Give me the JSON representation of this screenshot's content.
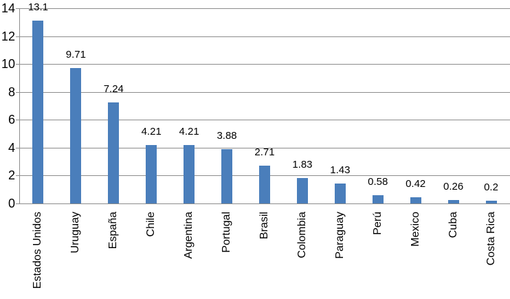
{
  "chart_data": {
    "type": "bar",
    "categories": [
      "Estados Unidos",
      "Uruguay",
      "España",
      "Chile",
      "Argentina",
      "Portugal",
      "Brasil",
      "Colombia",
      "Paraguay",
      "Perú",
      "Mexico",
      "Cuba",
      "Costa Rica"
    ],
    "values": [
      13.1,
      9.71,
      7.24,
      4.21,
      4.21,
      3.88,
      2.71,
      1.83,
      1.43,
      0.58,
      0.42,
      0.26,
      0.2
    ],
    "value_labels": [
      "13.1",
      "9.71",
      "7.24",
      "4.21",
      "4.21",
      "3.88",
      "2.71",
      "1.83",
      "1.43",
      "0.58",
      "0.42",
      "0.26",
      "0.2"
    ],
    "title": "",
    "xlabel": "",
    "ylabel": "",
    "ylim": [
      0,
      14
    ],
    "yticks": [
      0,
      2,
      4,
      6,
      8,
      10,
      12,
      14
    ],
    "ytick_labels": [
      "0",
      "2",
      "4",
      "6",
      "8",
      "10",
      "12",
      "14"
    ],
    "grid": true,
    "legend_position": "none",
    "bar_color": "#4A7EBB",
    "grid_color": "#8C8C8C",
    "axis_color": "#8C8C8C",
    "text_color": "#000000",
    "background_color": "#FFFFFF"
  }
}
